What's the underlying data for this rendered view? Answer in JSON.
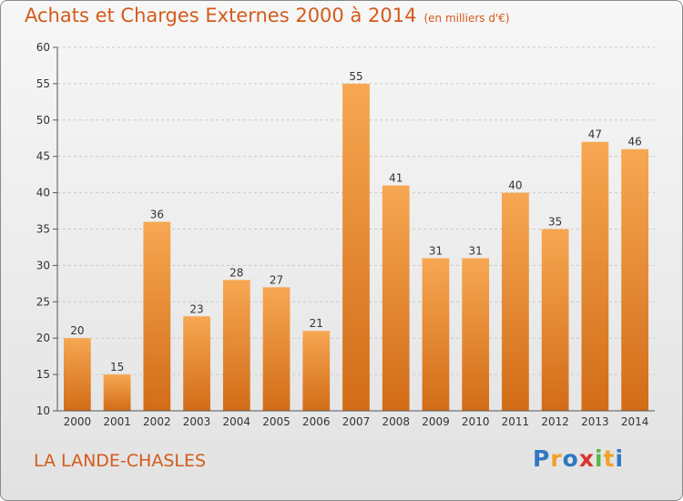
{
  "chart_data": {
    "type": "bar",
    "title": "Achats et Charges Externes 2000 à 2014",
    "subtitle": "(en milliers d'€)",
    "categories": [
      "2000",
      "2001",
      "2002",
      "2003",
      "2004",
      "2005",
      "2006",
      "2007",
      "2008",
      "2009",
      "2010",
      "2011",
      "2012",
      "2013",
      "2014"
    ],
    "values": [
      20,
      15,
      36,
      23,
      28,
      27,
      21,
      55,
      41,
      31,
      31,
      40,
      35,
      47,
      46
    ],
    "ylim": [
      10,
      60
    ],
    "yticks": [
      10,
      15,
      20,
      25,
      30,
      35,
      40,
      45,
      50,
      55,
      60
    ],
    "grid": true,
    "bar_color": "#f0913a"
  },
  "footer": {
    "place": "LA LANDE-CHASLES",
    "logo_letters": [
      "P",
      "r",
      "o",
      "x",
      "i",
      "t",
      "i"
    ],
    "logo_colors": [
      "#2f79c2",
      "#f0a22a",
      "#2f79c2",
      "#d9342b",
      "#58b847",
      "#f0a22a",
      "#2f79c2"
    ]
  }
}
